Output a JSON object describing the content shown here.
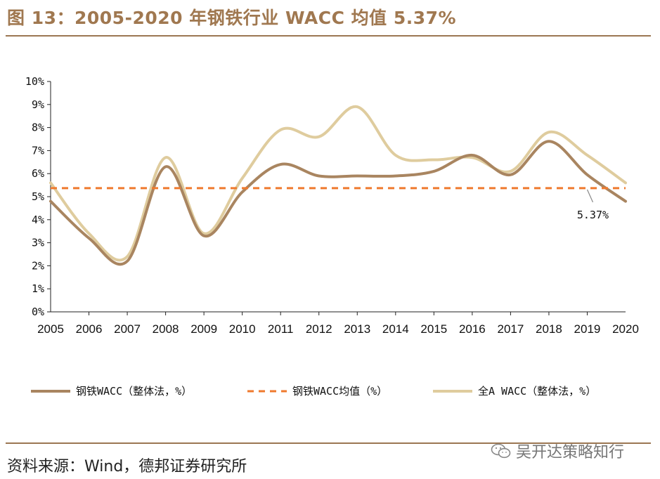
{
  "header": {
    "title": "图 13：2005-2020 年钢铁行业 WACC 均值 5.37%"
  },
  "footer": {
    "source": "资料来源：Wind，德邦证券研究所",
    "watermark": "吴开达策略知行",
    "watermark_icon": "wechat-icon"
  },
  "colors": {
    "title": "#a07850",
    "rule": "#9b7652",
    "steel": "#a98560",
    "mean": "#ef7a2e",
    "allA": "#dfcc9e",
    "axis": "#222222"
  },
  "chart_data": {
    "type": "line",
    "title": "",
    "xlabel": "",
    "ylabel": "",
    "ylim": [
      0,
      10
    ],
    "yticks": [
      "0%",
      "1%",
      "2%",
      "3%",
      "4%",
      "5%",
      "6%",
      "7%",
      "8%",
      "9%",
      "10%"
    ],
    "categories": [
      "2005",
      "2006",
      "2007",
      "2008",
      "2009",
      "2010",
      "2011",
      "2012",
      "2013",
      "2014",
      "2015",
      "2016",
      "2017",
      "2018",
      "2019",
      "2020"
    ],
    "series": [
      {
        "name": "钢铁WACC（整体法，%）",
        "style": "solid",
        "values": [
          4.8,
          3.2,
          2.2,
          6.3,
          3.3,
          5.2,
          6.4,
          5.9,
          5.9,
          5.9,
          6.1,
          6.8,
          5.95,
          7.4,
          5.95,
          4.8
        ]
      },
      {
        "name": "钢铁WACC均值（%）",
        "style": "dashed",
        "values": [
          5.37,
          5.37,
          5.37,
          5.37,
          5.37,
          5.37,
          5.37,
          5.37,
          5.37,
          5.37,
          5.37,
          5.37,
          5.37,
          5.37,
          5.37,
          5.37
        ]
      },
      {
        "name": "全A WACC（整体法，%）",
        "style": "solid",
        "values": [
          5.6,
          3.4,
          2.4,
          6.7,
          3.4,
          5.8,
          7.9,
          7.6,
          8.9,
          6.8,
          6.6,
          6.7,
          6.1,
          7.8,
          6.8,
          5.6
        ]
      }
    ],
    "annotations": [
      {
        "text": "5.37%",
        "x": "2019",
        "y": 5.37
      }
    ],
    "legend_position": "bottom"
  }
}
